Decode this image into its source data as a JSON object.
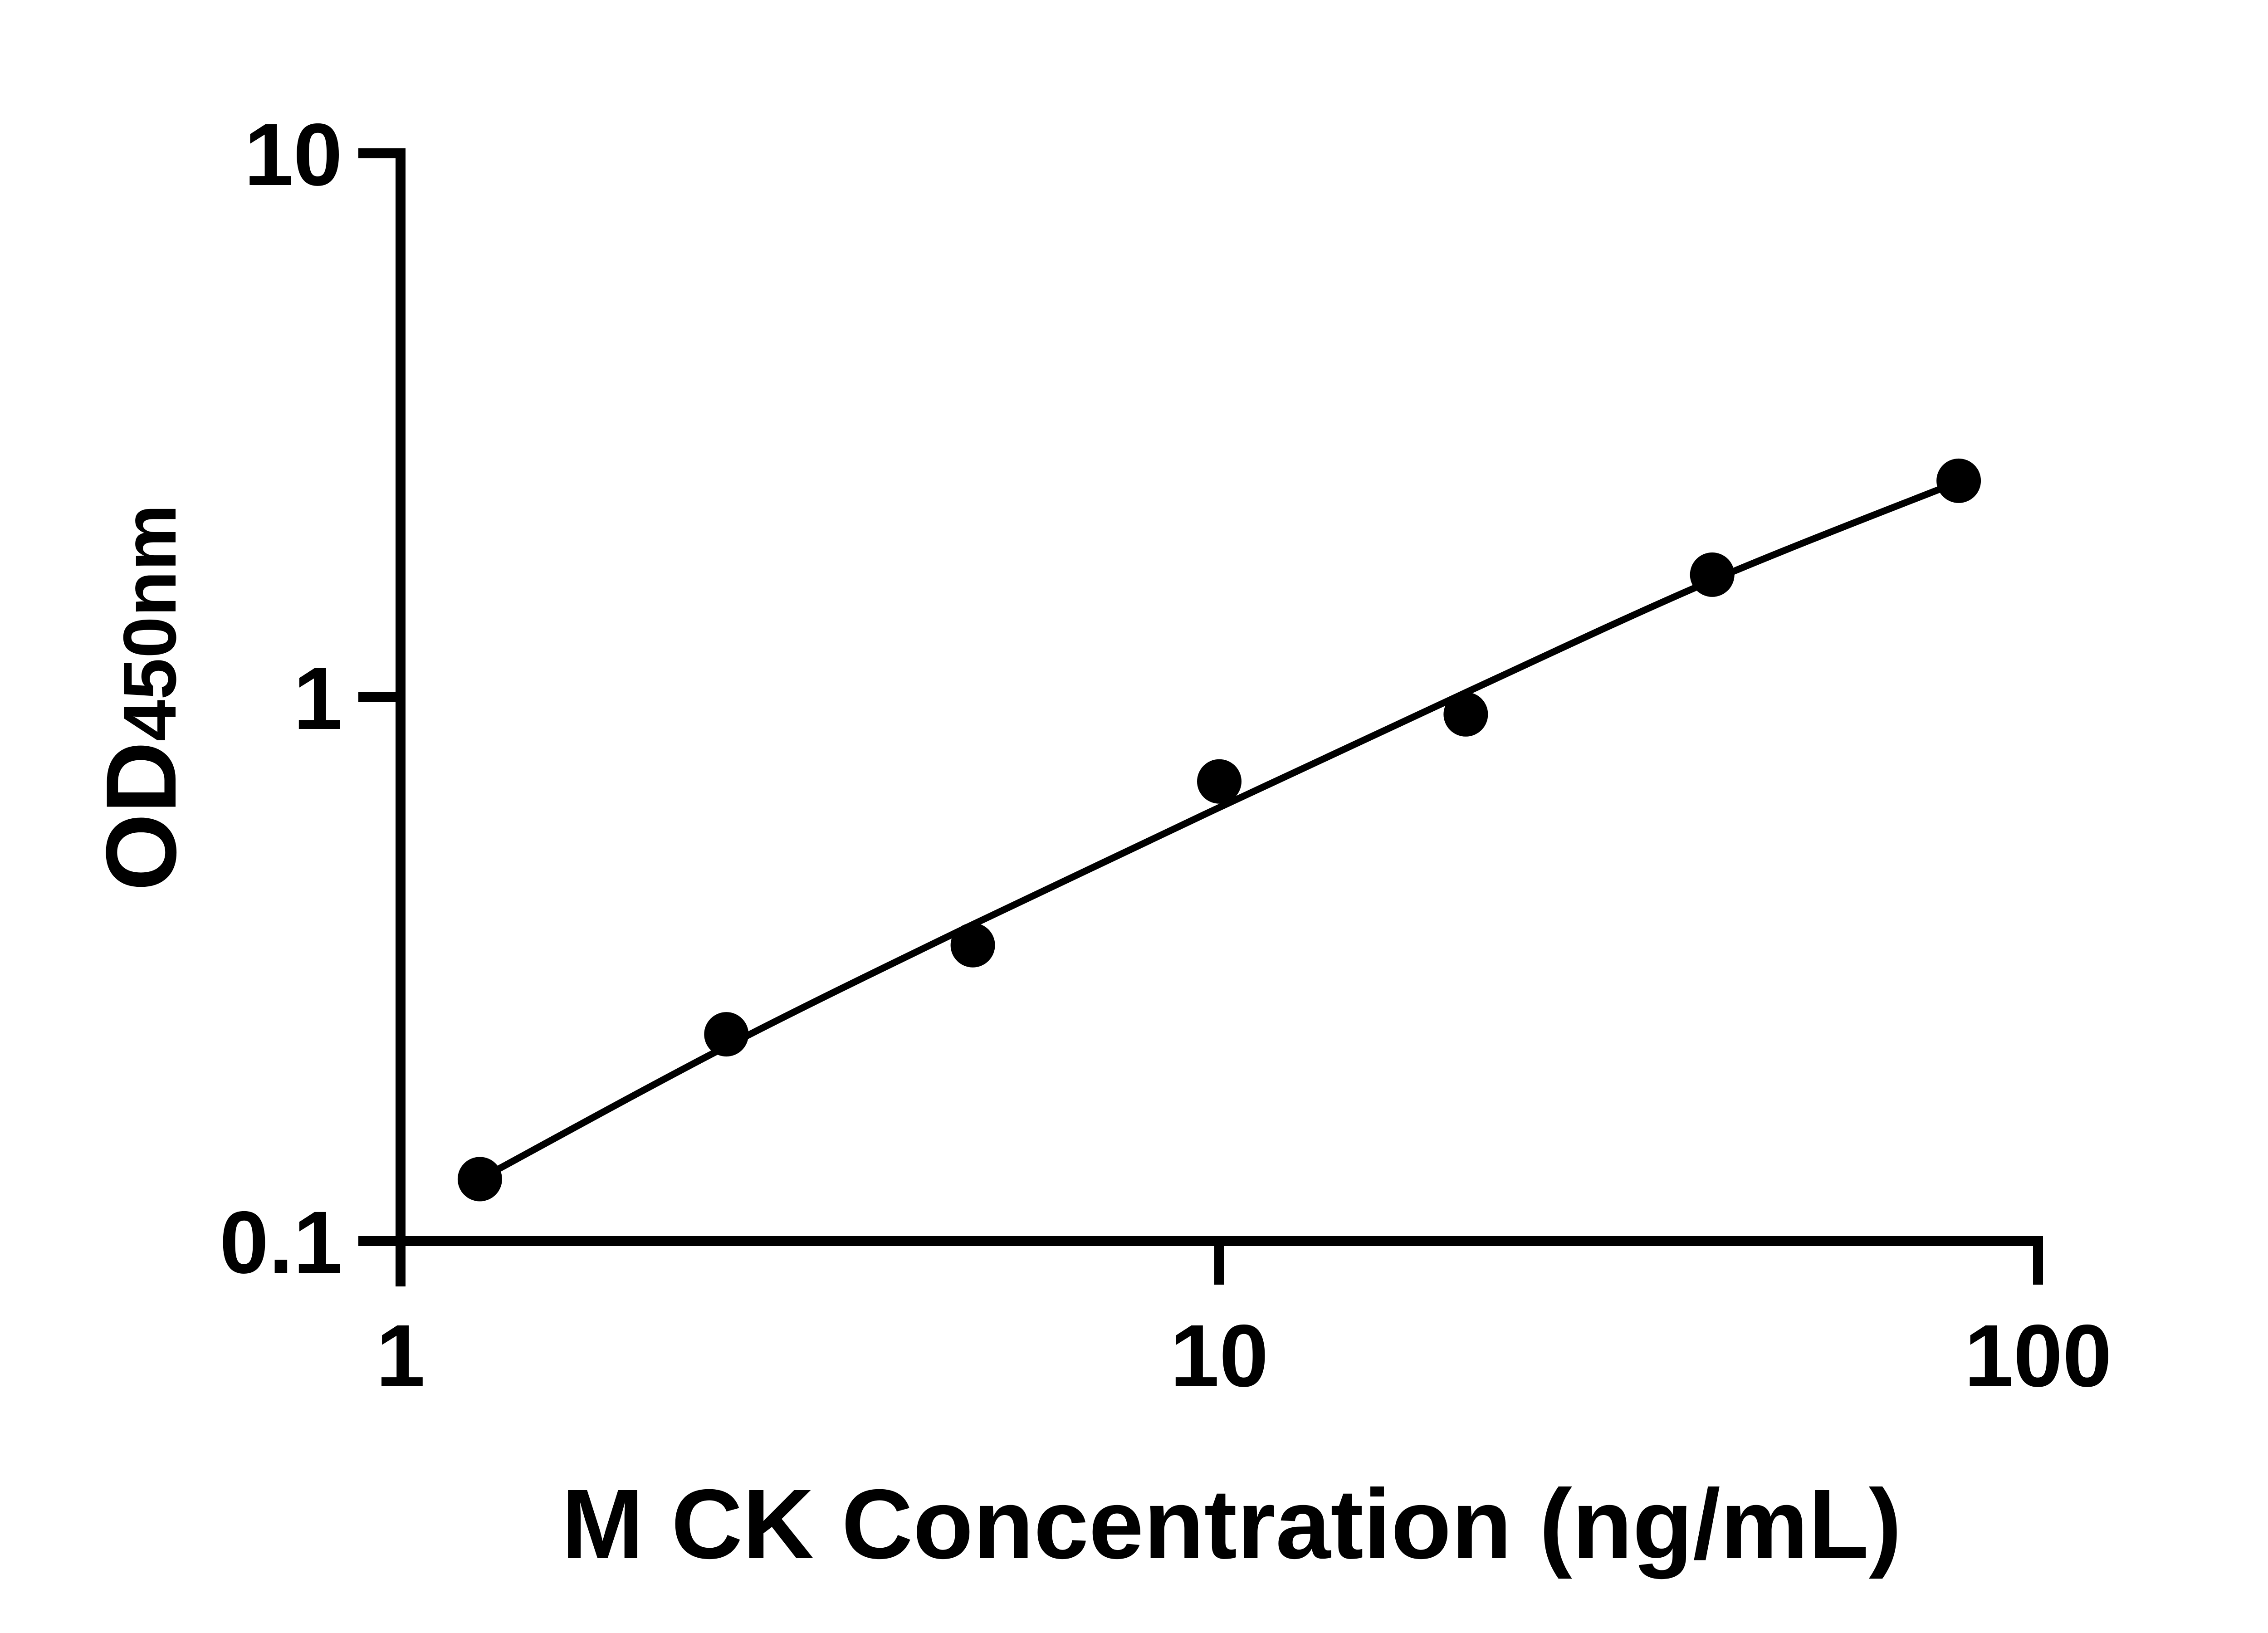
{
  "figure": {
    "background": "#ffffff",
    "foreground": "#000000",
    "description": "ELISA standard curve, log-log scatter plot with fitted line"
  },
  "chart_data": {
    "type": "scatter",
    "title": "",
    "xlabel": "M CK Concentration (ng/mL)",
    "ylabel_main": "OD",
    "ylabel_sub": "450nm",
    "x_scale": "log",
    "y_scale": "log",
    "xlim": [
      1,
      100
    ],
    "ylim": [
      0.1,
      10
    ],
    "grid": false,
    "legend": "none",
    "x_ticks": {
      "values": [
        1,
        10,
        100
      ],
      "labels": [
        "1",
        "10",
        "100"
      ]
    },
    "y_ticks": {
      "values": [
        0.1,
        1,
        10
      ],
      "labels": [
        "0.1",
        "1",
        "10"
      ]
    },
    "series": [
      {
        "name": "standards",
        "kind": "scatter",
        "marker": "filled-circle",
        "color": "#000000",
        "points": [
          {
            "x": 1.25,
            "y": 0.13
          },
          {
            "x": 2.5,
            "y": 0.24
          },
          {
            "x": 5,
            "y": 0.35
          },
          {
            "x": 10,
            "y": 0.7
          },
          {
            "x": 20,
            "y": 0.93
          },
          {
            "x": 40,
            "y": 1.68
          },
          {
            "x": 80,
            "y": 2.5
          }
        ]
      },
      {
        "name": "fit-line",
        "kind": "smooth-line",
        "color": "#000000",
        "points": [
          {
            "x": 1.25,
            "y": 0.13
          },
          {
            "x": 2.5,
            "y": 0.228
          },
          {
            "x": 5,
            "y": 0.382
          },
          {
            "x": 10,
            "y": 0.627
          },
          {
            "x": 20,
            "y": 1.02
          },
          {
            "x": 40,
            "y": 1.64
          },
          {
            "x": 80,
            "y": 2.49
          }
        ]
      }
    ]
  }
}
